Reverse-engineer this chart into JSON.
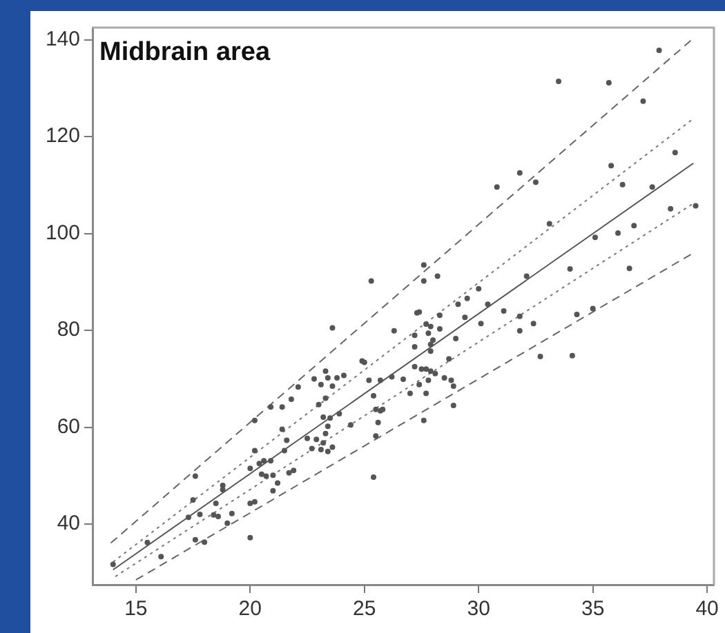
{
  "chart_data": {
    "type": "scatter",
    "title": "Midbrain area",
    "xlim": [
      13.1,
      40.3
    ],
    "ylim": [
      27.5,
      142.5
    ],
    "xticks": [
      15,
      20,
      25,
      30,
      35,
      40
    ],
    "yticks": [
      40,
      60,
      80,
      100,
      120,
      140
    ],
    "grid": false,
    "legend": false,
    "series": [
      {
        "type": "scatter",
        "color": "#555555",
        "marker": "circle",
        "x": [
          14.0,
          15.5,
          16.1,
          17.6,
          17.5,
          17.6,
          18.0,
          17.3,
          17.8,
          18.4,
          18.6,
          18.8,
          18.8,
          18.5,
          19.0,
          19.2,
          20.0,
          20.0,
          20.2,
          20.0,
          20.2,
          20.2,
          20.4,
          20.6,
          20.5,
          20.7,
          20.9,
          20.9,
          21.4,
          21.4,
          21.0,
          21.0,
          21.2,
          21.5,
          21.6,
          21.7,
          21.9,
          21.8,
          22.1,
          22.5,
          22.7,
          22.8,
          23.1,
          23.3,
          23.4,
          23.6,
          23.0,
          23.3,
          22.9,
          23.2,
          23.1,
          23.4,
          23.6,
          23.4,
          23.2,
          23.5,
          23.3,
          23.6,
          23.8,
          24.1,
          23.9,
          24.4,
          24.9,
          25.2,
          25.4,
          25.5,
          25.8,
          25.6,
          25.5,
          25.4,
          26.3,
          25.0,
          25.7,
          26.2,
          26.7,
          25.7,
          27.3,
          27.2,
          27.2,
          27.7,
          27.9,
          27.8,
          28.0,
          28.3,
          27.9,
          27.9,
          27.2,
          27.5,
          27.7,
          27.9,
          28.1,
          27.8,
          27.4,
          27.7,
          27.0,
          27.6,
          28.5,
          28.8,
          28.9,
          28.9,
          28.7,
          29.0,
          29.1,
          29.5,
          30.0,
          29.4,
          30.1,
          30.4,
          31.1,
          31.8,
          31.8,
          32.4,
          32.7,
          34.1,
          34.3,
          35.0,
          37.9,
          33.5,
          35.7,
          37.2,
          38.6,
          35.8,
          36.3,
          37.6,
          31.8,
          30.8,
          32.5,
          33.1,
          38.4,
          39.5,
          35.1,
          36.1,
          36.8,
          34.0,
          36.6,
          27.6,
          27.6,
          28.2,
          25.3,
          32.1,
          27.4,
          28.3
        ],
        "values": [
          31.7,
          36.2,
          33.3,
          49.9,
          45,
          36.8,
          36.3,
          41.4,
          42,
          41.9,
          41.6,
          48,
          47.1,
          44.3,
          40.2,
          42.2,
          37.2,
          44.3,
          44.6,
          51.5,
          55.2,
          61.4,
          52.5,
          53.1,
          50.3,
          49.9,
          53.1,
          64.2,
          64.2,
          59.6,
          50.1,
          46.9,
          48.5,
          55.2,
          57.3,
          50.6,
          51.1,
          65.8,
          68.3,
          57.7,
          55.6,
          70,
          68.8,
          71.6,
          70.2,
          68.5,
          64.7,
          66,
          57.5,
          56.8,
          55.4,
          55,
          55.9,
          60.2,
          62.1,
          61.9,
          58.7,
          80.5,
          70.2,
          70.7,
          62.8,
          60.5,
          73.7,
          69.7,
          49.7,
          63.7,
          63.7,
          61,
          58.2,
          66.5,
          79.9,
          73.4,
          69.7,
          70.4,
          69.9,
          63.4,
          83.6,
          79,
          76.6,
          81.3,
          80.8,
          79.4,
          78,
          80.3,
          77.1,
          75.7,
          72.5,
          72,
          72,
          71.6,
          71.1,
          69.7,
          68.8,
          67,
          67,
          61.4,
          70.2,
          69.7,
          68.5,
          64.5,
          74.1,
          78.3,
          85.4,
          86.6,
          88.6,
          82.7,
          81.4,
          85.4,
          84,
          82.9,
          79.9,
          81.4,
          74.6,
          74.8,
          83.3,
          84.5,
          137.8,
          131.4,
          131.1,
          127.3,
          116.7,
          114,
          110.1,
          109.6,
          112.5,
          109.6,
          110.6,
          102,
          105.1,
          105.7,
          99.2,
          100.1,
          101.6,
          92.7,
          92.8,
          93.5,
          90.2,
          91.2,
          90.2,
          91.2,
          83.8,
          83.1
        ]
      },
      {
        "type": "line",
        "color": "#555555",
        "line_style": "solid",
        "marker": "none",
        "x": [
          14.0,
          39.4
        ],
        "values": [
          30.6,
          114.5
        ]
      },
      {
        "type": "line",
        "color": "#666666",
        "line_style": "dashed",
        "marker": "none",
        "x": [
          13.9,
          39.4
        ],
        "values": [
          36.1,
          140.3
        ]
      },
      {
        "type": "line",
        "color": "#666666",
        "line_style": "dashed",
        "marker": "none",
        "x": [
          15.0,
          39.3
        ],
        "values": [
          28.5,
          95.7
        ]
      },
      {
        "type": "line",
        "color": "#777777",
        "line_style": "dotted",
        "marker": "none",
        "x": [
          14.0,
          39.4
        ],
        "values": [
          32.2,
          123.7
        ]
      },
      {
        "type": "line",
        "color": "#777777",
        "line_style": "dotted",
        "marker": "none",
        "x": [
          14.1,
          39.4
        ],
        "values": [
          29.2,
          106.2
        ]
      }
    ]
  }
}
